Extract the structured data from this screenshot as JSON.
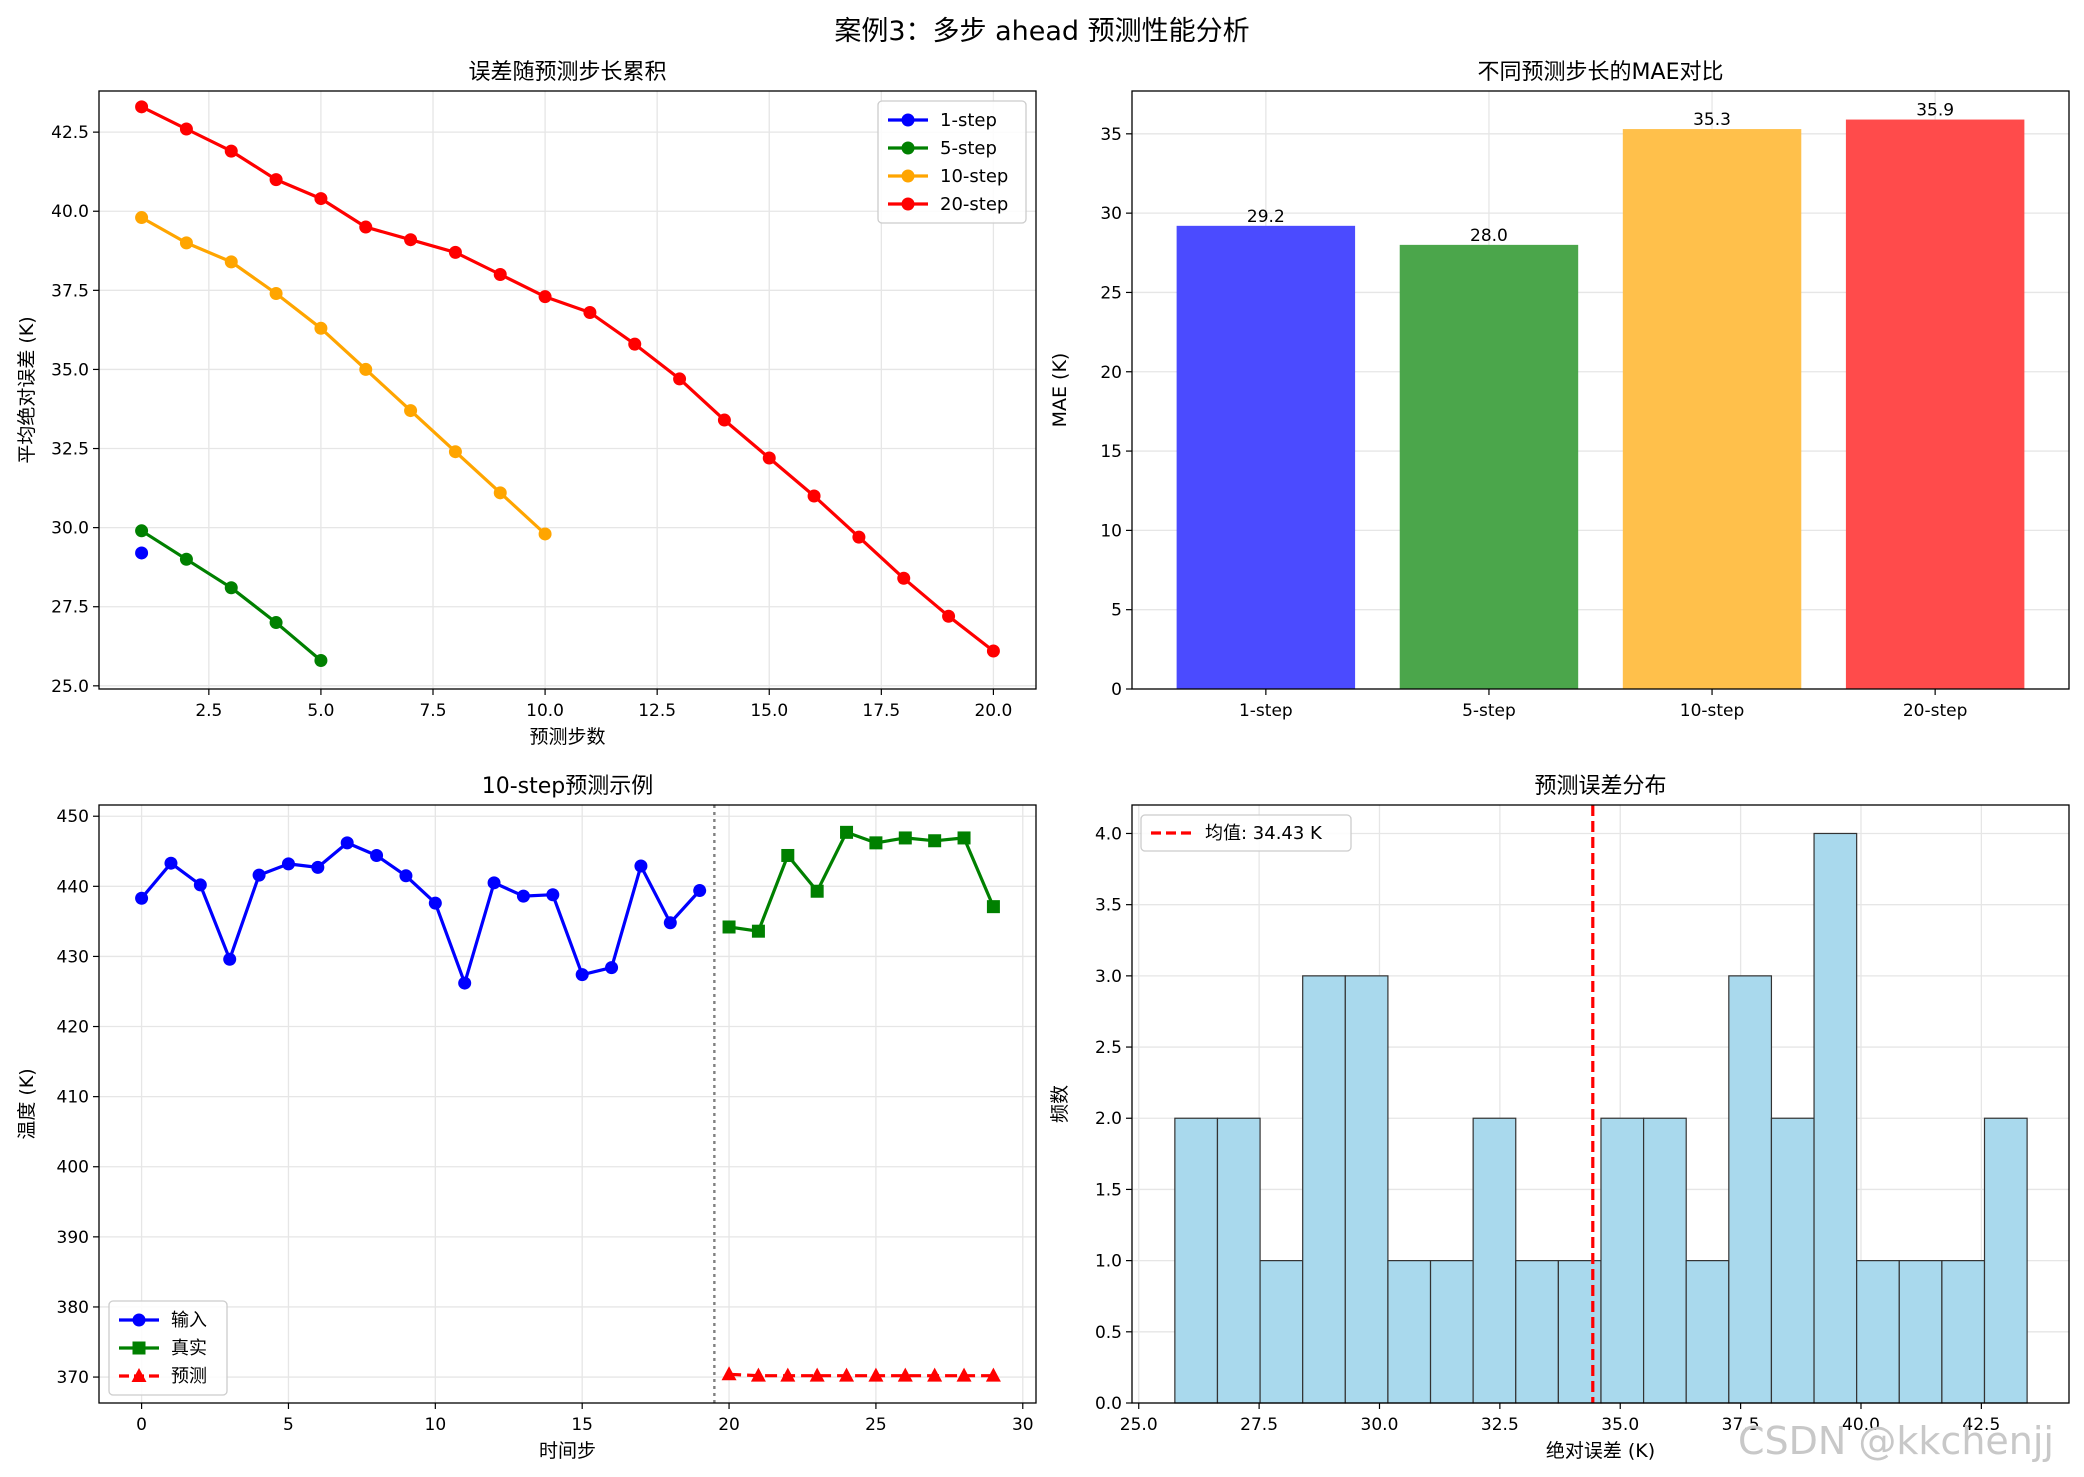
{
  "suptitle": "案例3：多步 ahead 预测性能分析",
  "watermark": "CSDN @kkchenjj",
  "chart_data": [
    {
      "type": "line",
      "title": "误差随预测步长累积",
      "xlabel": "预测步数",
      "ylabel": "平均绝对误差 (K)",
      "xlim": [
        0.05,
        20.95
      ],
      "ylim": [
        24.9,
        43.8
      ],
      "xticks": [
        2.5,
        5.0,
        7.5,
        10.0,
        12.5,
        15.0,
        17.5,
        20.0
      ],
      "xtick_labels": [
        "2.5",
        "5.0",
        "7.5",
        "10.0",
        "12.5",
        "15.0",
        "17.5",
        "20.0"
      ],
      "yticks": [
        25.0,
        27.5,
        30.0,
        32.5,
        35.0,
        37.5,
        40.0,
        42.5
      ],
      "ytick_labels": [
        "25.0",
        "27.5",
        "30.0",
        "32.5",
        "35.0",
        "37.5",
        "40.0",
        "42.5"
      ],
      "grid": true,
      "legend": "top-right",
      "series": [
        {
          "name": "1-step",
          "color": "#0000ff",
          "marker": "circle",
          "x": [
            1
          ],
          "y": [
            29.2
          ]
        },
        {
          "name": "5-step",
          "color": "#008000",
          "marker": "circle",
          "x": [
            1,
            2,
            3,
            4,
            5
          ],
          "y": [
            29.9,
            29.0,
            28.1,
            27.0,
            25.8
          ]
        },
        {
          "name": "10-step",
          "color": "#ffa500",
          "marker": "circle",
          "x": [
            1,
            2,
            3,
            4,
            5,
            6,
            7,
            8,
            9,
            10
          ],
          "y": [
            39.8,
            39.0,
            38.4,
            37.4,
            36.3,
            35.0,
            33.7,
            32.4,
            31.1,
            29.8
          ]
        },
        {
          "name": "20-step",
          "color": "#ff0000",
          "marker": "circle",
          "x": [
            1,
            2,
            3,
            4,
            5,
            6,
            7,
            8,
            9,
            10,
            11,
            12,
            13,
            14,
            15,
            16,
            17,
            18,
            19,
            20
          ],
          "y": [
            43.3,
            42.6,
            41.9,
            41.0,
            40.4,
            39.5,
            39.1,
            38.7,
            38.0,
            37.3,
            36.8,
            35.8,
            34.7,
            33.4,
            32.2,
            31.0,
            29.7,
            28.4,
            27.2,
            26.1
          ]
        }
      ]
    },
    {
      "type": "bar",
      "title": "不同预测步长的MAE对比",
      "xlabel": "",
      "ylabel": "MAE (K)",
      "categories": [
        "1-step",
        "5-step",
        "10-step",
        "20-step"
      ],
      "values": [
        29.2,
        28.0,
        35.3,
        35.9
      ],
      "value_labels": [
        "29.2",
        "28.0",
        "35.3",
        "35.9"
      ],
      "colors": [
        "#4b4bff",
        "#4ba64b",
        "#ffc04b",
        "#ff4b4b"
      ],
      "ylim": [
        0,
        37.7
      ],
      "yticks": [
        0,
        5,
        10,
        15,
        20,
        25,
        30,
        35
      ],
      "ytick_labels": [
        "0",
        "5",
        "10",
        "15",
        "20",
        "25",
        "30",
        "35"
      ],
      "grid": true
    },
    {
      "type": "line",
      "title": "10-step预测示例",
      "xlabel": "时间步",
      "ylabel": "温度 (K)",
      "xlim": [
        -1.45,
        30.45
      ],
      "ylim": [
        366.3,
        451.6
      ],
      "xticks": [
        0,
        5,
        10,
        15,
        20,
        25,
        30
      ],
      "xtick_labels": [
        "0",
        "5",
        "10",
        "15",
        "20",
        "25",
        "30"
      ],
      "yticks": [
        370,
        380,
        390,
        400,
        410,
        420,
        430,
        440,
        450
      ],
      "ytick_labels": [
        "370",
        "380",
        "390",
        "400",
        "410",
        "420",
        "430",
        "440",
        "450"
      ],
      "vline": {
        "x": 19.5,
        "color": "#808080",
        "style": "dotted"
      },
      "grid": true,
      "legend": "bottom-left",
      "series": [
        {
          "name": "输入",
          "color": "#0000ff",
          "marker": "circle",
          "dash": false,
          "x": [
            0,
            1,
            2,
            3,
            4,
            5,
            6,
            7,
            8,
            9,
            10,
            11,
            12,
            13,
            14,
            15,
            16,
            17,
            18,
            19
          ],
          "y": [
            438.3,
            443.3,
            440.2,
            429.6,
            441.6,
            443.2,
            442.7,
            446.2,
            444.4,
            441.5,
            437.6,
            426.2,
            440.5,
            438.6,
            438.8,
            427.4,
            428.4,
            442.9,
            434.8,
            439.4
          ]
        },
        {
          "name": "真实",
          "color": "#008000",
          "marker": "square",
          "dash": false,
          "x": [
            20,
            21,
            22,
            23,
            24,
            25,
            26,
            27,
            28,
            29
          ],
          "y": [
            434.2,
            433.6,
            444.4,
            439.3,
            447.7,
            446.2,
            446.9,
            446.5,
            446.9,
            437.1
          ]
        },
        {
          "name": "预测",
          "color": "#ff0000",
          "marker": "triangle",
          "dash": true,
          "x": [
            20,
            21,
            22,
            23,
            24,
            25,
            26,
            27,
            28,
            29
          ],
          "y": [
            370.4,
            370.2,
            370.2,
            370.2,
            370.2,
            370.2,
            370.2,
            370.2,
            370.2,
            370.2
          ]
        }
      ]
    },
    {
      "type": "bar",
      "subtype": "histogram",
      "title": "预测误差分布",
      "xlabel": "绝对误差 (K)",
      "ylabel": "频数",
      "bin_start": 25.75,
      "bin_width": 0.885,
      "counts": [
        2,
        2,
        1,
        3,
        3,
        1,
        1,
        2,
        1,
        1,
        2,
        2,
        1,
        3,
        2,
        4,
        1,
        1,
        1,
        2
      ],
      "color": "#a9d9ed",
      "edgecolor": "#333333",
      "xlim": [
        24.86,
        44.32
      ],
      "ylim": [
        0,
        4.2
      ],
      "xticks": [
        25.0,
        27.5,
        30.0,
        32.5,
        35.0,
        37.5,
        40.0,
        42.5
      ],
      "xtick_labels": [
        "25.0",
        "27.5",
        "30.0",
        "32.5",
        "35.0",
        "37.5",
        "40.0",
        "42.5"
      ],
      "yticks": [
        0.0,
        0.5,
        1.0,
        1.5,
        2.0,
        2.5,
        3.0,
        3.5,
        4.0
      ],
      "ytick_labels": [
        "0.0",
        "0.5",
        "1.0",
        "1.5",
        "2.0",
        "2.5",
        "3.0",
        "3.5",
        "4.0"
      ],
      "mean_line": {
        "x": 34.43,
        "label": "均值: 34.43 K",
        "color": "#ff0000"
      },
      "legend": "top-left",
      "grid": true
    }
  ]
}
